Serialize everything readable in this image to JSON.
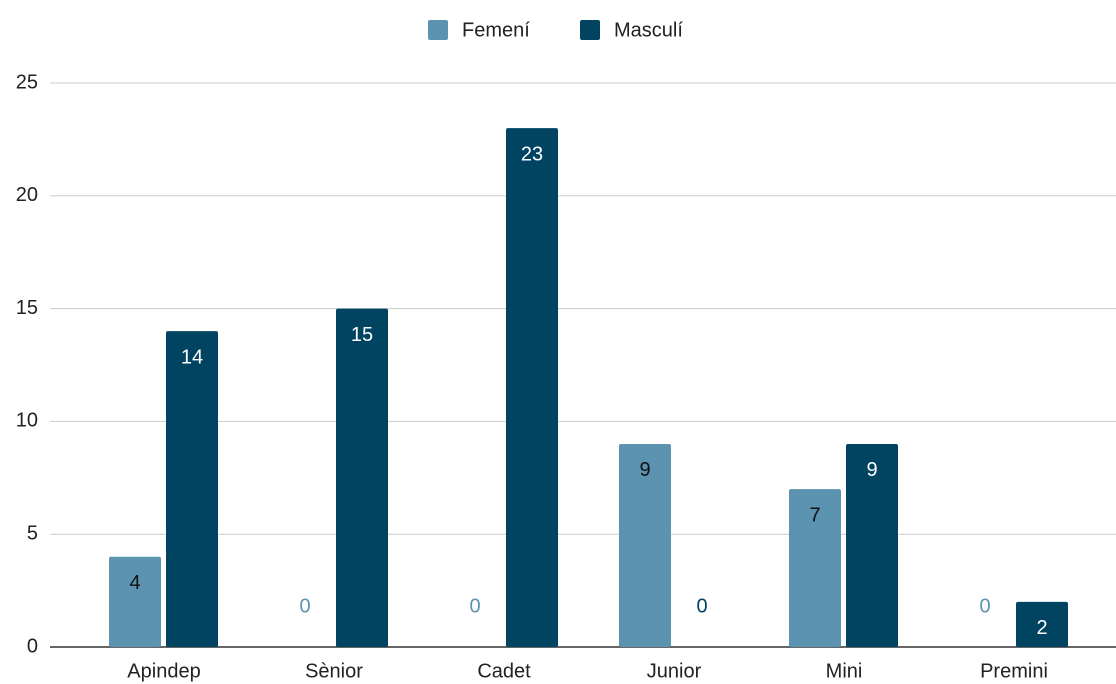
{
  "chart_data": {
    "type": "bar",
    "categories": [
      "Apindep",
      "Sènior",
      "Cadet",
      "Junior",
      "Mini",
      "Premini"
    ],
    "series": [
      {
        "name": "Femení",
        "color": "#5b93b0",
        "values": [
          4,
          0,
          0,
          9,
          7,
          0
        ]
      },
      {
        "name": "Masculí",
        "color": "#004461",
        "values": [
          14,
          15,
          23,
          0,
          9,
          2
        ]
      }
    ],
    "ylim": [
      0,
      25
    ],
    "yticks": [
      0,
      5,
      10,
      15,
      20,
      25
    ],
    "grid": true,
    "legend": "top"
  }
}
